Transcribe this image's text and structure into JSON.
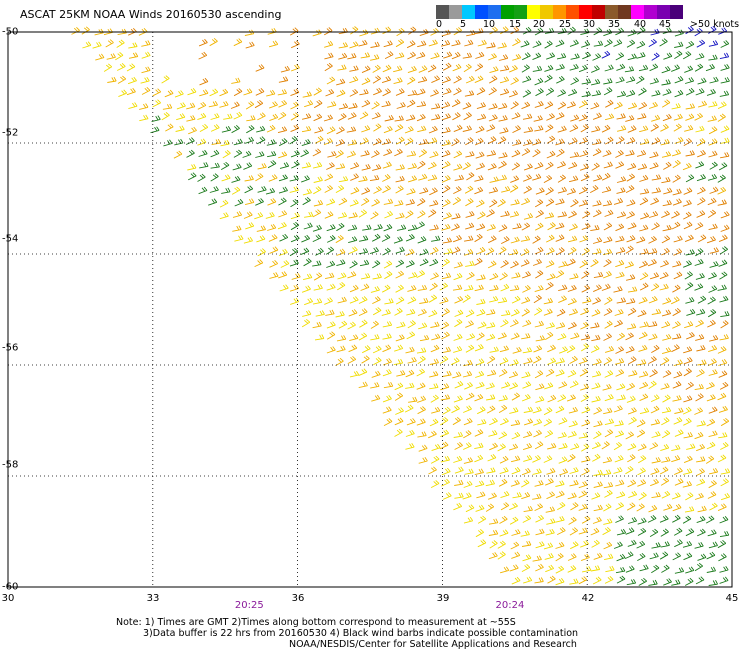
{
  "title": "ASCAT 25KM NOAA Winds 20160530 ascending",
  "color_scale": {
    "labels": [
      "0",
      "5",
      "10",
      "15",
      "20",
      "25",
      "30",
      "35",
      "40",
      "45",
      ">50 knots"
    ],
    "colors": [
      "#555555",
      "#9a9a9a",
      "#00c8ff",
      "#0050ff",
      "#1e6ef0",
      "#00a000",
      "#14a014",
      "#ffff00",
      "#f0c800",
      "#ff9600",
      "#ff5000",
      "#ff0000",
      "#c00000",
      "#8b5a2b",
      "#703820",
      "#ff00ff",
      "#b000d0",
      "#7a00b0",
      "#4a007a"
    ]
  },
  "axes": {
    "x_ticks": [
      "30",
      "33",
      "36",
      "39",
      "42",
      "45"
    ],
    "y_ticks": [
      "-50",
      "-52",
      "-54",
      "-56",
      "-58",
      "-60"
    ]
  },
  "pass_times": [
    {
      "label": "20:25",
      "lon": 35.0
    },
    {
      "label": "20:24",
      "lon": 40.4
    }
  ],
  "notes": {
    "line1": "Note: 1) Times are GMT 2)Times along bottom correspond to measurement at ~55S",
    "line2": "3)Data buffer is 22 hrs from 20160530 4) Black wind barbs indicate possible contamination",
    "line3": "NOAA/NESDIS/Center for Satellite Applications and Research"
  },
  "map": {
    "lon_range": [
      30,
      45
    ],
    "lat_range": [
      -50,
      -60
    ],
    "barb_colors": {
      "green": "#1a7a1a",
      "yellow": "#f0dc00",
      "gold": "#f0b400",
      "orange": "#e08000",
      "blue": "#1010c0"
    }
  }
}
